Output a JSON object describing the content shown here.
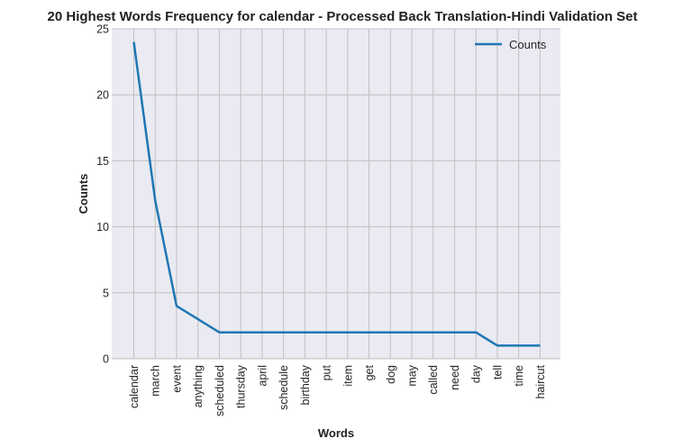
{
  "chart_data": {
    "type": "line",
    "title": "20 Highest Words Frequency for calendar - Processed Back Translation-Hindi Validation Set",
    "xlabel": "Words",
    "ylabel": "Counts",
    "categories": [
      "calendar",
      "march",
      "event",
      "anything",
      "scheduled",
      "thursday",
      "april",
      "schedule",
      "birthday",
      "put",
      "item",
      "get",
      "dog",
      "may",
      "called",
      "need",
      "day",
      "tell",
      "time",
      "haircut"
    ],
    "series": [
      {
        "name": "Counts",
        "values": [
          24,
          12,
          4,
          3,
          2,
          2,
          2,
          2,
          2,
          2,
          2,
          2,
          2,
          2,
          2,
          2,
          2,
          1,
          1,
          1
        ],
        "color": "#1f77b4"
      }
    ],
    "ylim": [
      0,
      25
    ],
    "yticks": [
      0,
      5,
      10,
      15,
      20,
      25
    ],
    "grid": true,
    "legend_position": "top-right",
    "plot_background": "#eaeaf2",
    "grid_color": "#c0c0c0"
  }
}
